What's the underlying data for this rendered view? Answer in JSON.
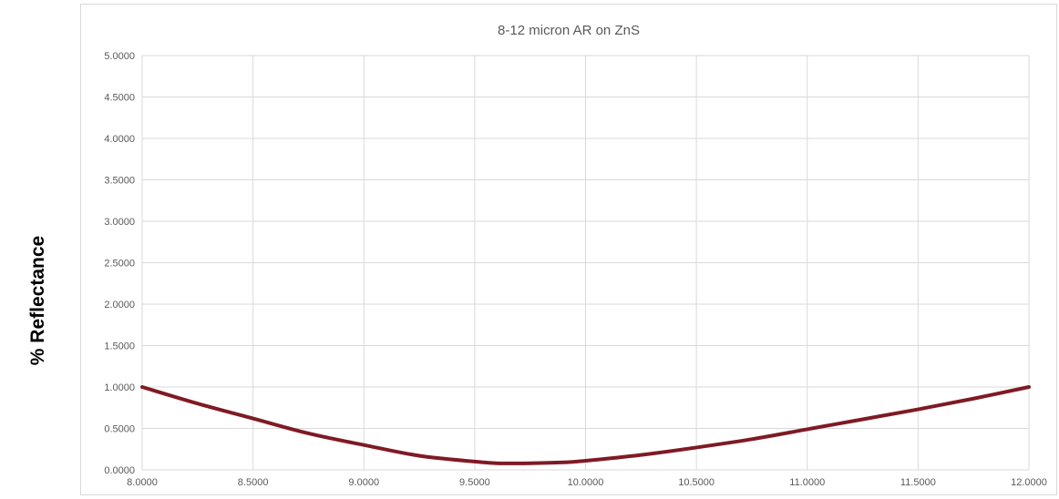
{
  "chart_data": {
    "type": "line",
    "title": "8-12 micron AR on ZnS",
    "xlabel": "",
    "ylabel": "% Reflectance",
    "xlim": [
      8.0,
      12.0
    ],
    "ylim": [
      0.0,
      5.0
    ],
    "x_ticks": [
      "8.0000",
      "8.5000",
      "9.0000",
      "9.5000",
      "10.0000",
      "10.5000",
      "11.0000",
      "11.5000",
      "12.0000"
    ],
    "y_ticks": [
      "0.0000",
      "0.5000",
      "1.0000",
      "1.5000",
      "2.0000",
      "2.5000",
      "3.0000",
      "3.5000",
      "4.0000",
      "4.5000",
      "5.0000"
    ],
    "grid": true,
    "series": [
      {
        "color": "#7f1a24",
        "x": [
          8.0,
          8.25,
          8.5,
          8.75,
          9.0,
          9.25,
          9.5,
          9.6,
          9.75,
          9.9,
          10.0,
          10.25,
          10.5,
          10.75,
          11.0,
          11.25,
          11.5,
          11.75,
          12.0
        ],
        "y": [
          1.0,
          0.8,
          0.62,
          0.44,
          0.3,
          0.17,
          0.1,
          0.08,
          0.08,
          0.09,
          0.11,
          0.18,
          0.27,
          0.37,
          0.49,
          0.61,
          0.73,
          0.86,
          1.0
        ]
      }
    ]
  }
}
